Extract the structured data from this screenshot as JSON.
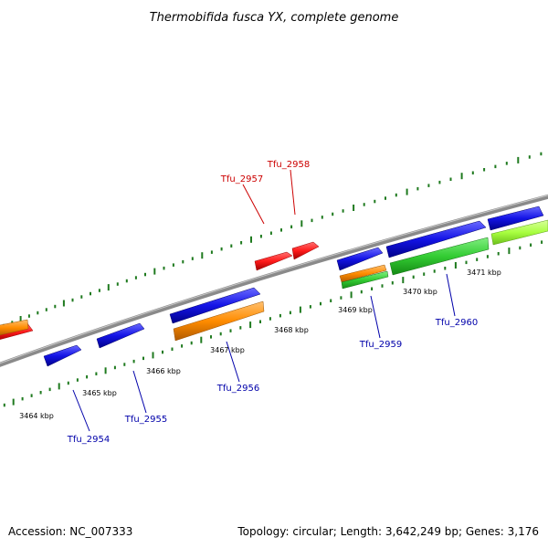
{
  "title": "Thermobifida fusca YX, complete genome",
  "footer": {
    "accession": "Accession: NC_007333",
    "summary": "Topology: circular; Length: 3,642,249 bp; Genes: 3,176"
  },
  "colors": {
    "backbone": "#8a8a8a",
    "tick": "#1f7a1f",
    "label_red": "#cc0000",
    "label_blue": "#0000aa",
    "red": "#ff1a1a",
    "blue": "#1010e0",
    "orange": "#ff8c00",
    "green": "#33cc33",
    "lime": "#a8ff40"
  },
  "kbp_labels": [
    "3464 kbp",
    "3465 kbp",
    "3466 kbp",
    "3467 kbp",
    "3468 kbp",
    "3469 kbp",
    "3470 kbp",
    "3471 kbp"
  ],
  "gene_labels": [
    {
      "name": "Tfu_2957",
      "color": "red"
    },
    {
      "name": "Tfu_2958",
      "color": "red"
    },
    {
      "name": "Tfu_2954",
      "color": "blue"
    },
    {
      "name": "Tfu_2955",
      "color": "blue"
    },
    {
      "name": "Tfu_2956",
      "color": "blue"
    },
    {
      "name": "Tfu_2959",
      "color": "blue"
    },
    {
      "name": "Tfu_2960",
      "color": "blue"
    }
  ]
}
